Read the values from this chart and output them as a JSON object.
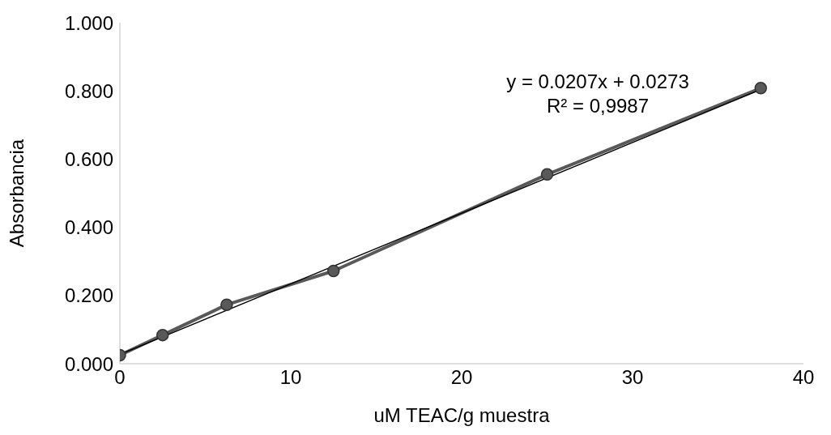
{
  "chart_data": {
    "type": "line",
    "xlabel": "uM TEAC/g muestra",
    "ylabel": "Absorbancia",
    "series": [
      {
        "color": "#595959",
        "marker": "circle",
        "x": [
          0,
          2.5,
          6.25,
          12.5,
          25,
          37.5
        ],
        "values": [
          0.025,
          0.084,
          0.173,
          0.272,
          0.555,
          0.808
        ]
      },
      {
        "color": "#000000",
        "marker": "none",
        "x": [
          0,
          37.5
        ],
        "values": [
          0.027,
          0.804
        ]
      }
    ],
    "annotations": [
      "y = 0.0207x + 0.0273",
      "R² = 0,9987"
    ],
    "xlim": [
      0,
      40
    ],
    "xticks": [
      0,
      10,
      20,
      30,
      40
    ],
    "ylim": [
      0,
      1
    ],
    "yticks": [
      {
        "value": 0,
        "label": "0.000"
      },
      {
        "value": 0.2,
        "label": "0.200"
      },
      {
        "value": 0.4,
        "label": "0.400"
      },
      {
        "value": 0.6,
        "label": "0.600"
      },
      {
        "value": 0.8,
        "label": "0.800"
      },
      {
        "value": 1,
        "label": "1.000"
      }
    ],
    "grid": false
  }
}
